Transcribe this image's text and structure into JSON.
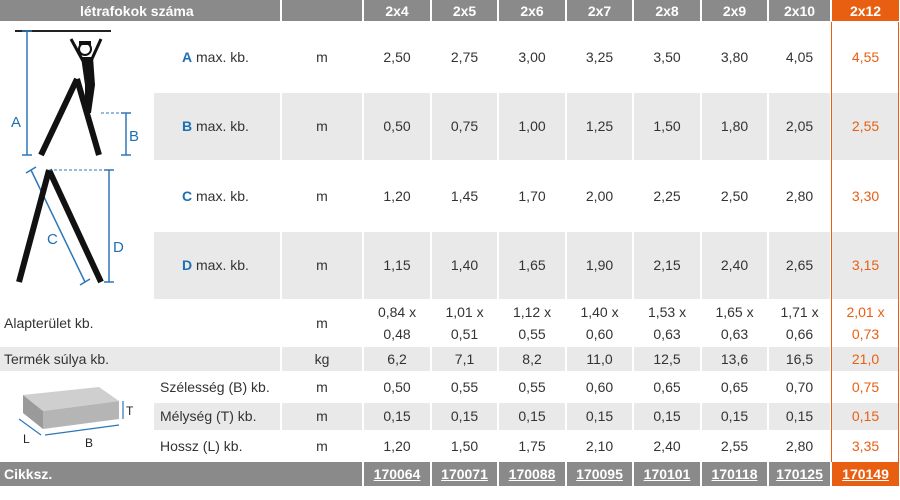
{
  "header": {
    "title": "létrafokok száma",
    "sizes": [
      "2x4",
      "2x5",
      "2x6",
      "2x7",
      "2x8",
      "2x9",
      "2x10",
      "2x12"
    ]
  },
  "dims": [
    {
      "letter": "A",
      "text": "max. kb.",
      "unit": "m",
      "values": [
        "2,50",
        "2,75",
        "3,00",
        "3,25",
        "3,50",
        "3,80",
        "4,05",
        "4,55"
      ]
    },
    {
      "letter": "B",
      "text": "max. kb.",
      "unit": "m",
      "values": [
        "0,50",
        "0,75",
        "1,00",
        "1,25",
        "1,50",
        "1,80",
        "2,05",
        "2,55"
      ]
    },
    {
      "letter": "C",
      "text": "max. kb.",
      "unit": "m",
      "values": [
        "1,20",
        "1,45",
        "1,70",
        "2,00",
        "2,25",
        "2,50",
        "2,80",
        "3,30"
      ]
    },
    {
      "letter": "D",
      "text": "max. kb.",
      "unit": "m",
      "values": [
        "1,15",
        "1,40",
        "1,65",
        "1,90",
        "2,15",
        "2,40",
        "2,65",
        "3,15"
      ]
    }
  ],
  "area": {
    "label": "Alapterület kb.",
    "unit": "m",
    "line1": [
      "0,84 x",
      "1,01 x",
      "1,12 x",
      "1,40 x",
      "1,53 x",
      "1,65 x",
      "1,71 x",
      "2,01 x"
    ],
    "line2": [
      "0,48",
      "0,51",
      "0,55",
      "0,60",
      "0,63",
      "0,63",
      "0,66",
      "0,73"
    ]
  },
  "weight": {
    "label": "Termék súlya kb.",
    "unit": "kg",
    "values": [
      "6,2",
      "7,1",
      "8,2",
      "11,0",
      "12,5",
      "13,6",
      "16,5",
      "21,0"
    ]
  },
  "package": [
    {
      "label": "Szélesség (B) kb.",
      "unit": "m",
      "values": [
        "0,50",
        "0,55",
        "0,55",
        "0,60",
        "0,65",
        "0,65",
        "0,70",
        "0,75"
      ]
    },
    {
      "label": "Mélység (T) kb.",
      "unit": "m",
      "values": [
        "0,15",
        "0,15",
        "0,15",
        "0,15",
        "0,15",
        "0,15",
        "0,15",
        "0,15"
      ]
    },
    {
      "label": "Hossz (L) kb.",
      "unit": "m",
      "values": [
        "1,20",
        "1,50",
        "1,75",
        "2,10",
        "2,40",
        "2,55",
        "2,80",
        "3,35"
      ]
    }
  ],
  "footer": {
    "label": "Cikksz.",
    "codes": [
      "170064",
      "170071",
      "170088",
      "170095",
      "170101",
      "170118",
      "170125",
      "170149"
    ]
  },
  "diagram_labels": {
    "a": "A",
    "b": "B",
    "c": "C",
    "d": "D",
    "t": "T",
    "l": "L",
    "bb": "B"
  },
  "colors": {
    "accent": "#e85f12",
    "letter": "#1e6fb3",
    "header": "#8a8a8a",
    "stripe": "#e9e9e9"
  }
}
